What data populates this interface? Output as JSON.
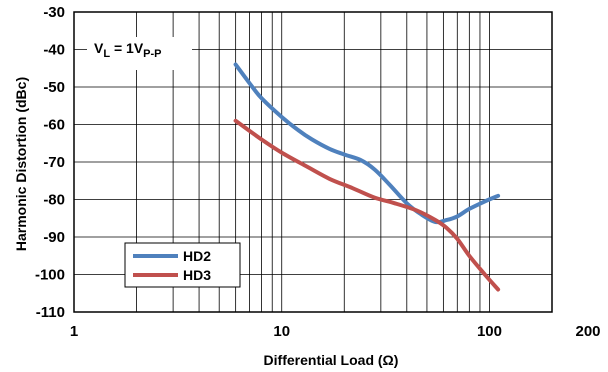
{
  "chart_data": {
    "type": "line",
    "title": "",
    "xlabel": "Differential Load (Ω)",
    "ylabel": "Harmonic Distortion (dBc)",
    "xscale": "log",
    "xlim": [
      1,
      200
    ],
    "ylim": [
      -110,
      -30
    ],
    "x_tick_labels": [
      "1",
      "10",
      "100",
      "200"
    ],
    "y_tick_labels": [
      "-30",
      "-40",
      "-50",
      "-60",
      "-70",
      "-80",
      "-90",
      "-100",
      "-110"
    ],
    "grid": true,
    "legend_position": "bottom-left",
    "annotation": {
      "main": "V",
      "sub1": "L",
      "mid": " = 1V",
      "sub2": "P-P"
    },
    "series": [
      {
        "name": "HD2",
        "color": "#4f81bd",
        "x": [
          6,
          7,
          8,
          10,
          12,
          14,
          17,
          20,
          24,
          28,
          33,
          40,
          47,
          55,
          62,
          70,
          80,
          95,
          110
        ],
        "y": [
          -44,
          -49,
          -53,
          -58,
          -61.5,
          -64,
          -66.5,
          -68,
          -69.5,
          -72,
          -76,
          -81,
          -84,
          -86,
          -85.5,
          -84.5,
          -82.5,
          -80.5,
          -79
        ]
      },
      {
        "name": "HD3",
        "color": "#c0504d",
        "x": [
          6,
          8,
          10,
          13,
          17,
          22,
          28,
          35,
          45,
          55,
          62,
          70,
          80,
          95,
          110
        ],
        "y": [
          -59,
          -64,
          -67.5,
          -71,
          -74.5,
          -77,
          -79.5,
          -81,
          -83,
          -85.5,
          -87.5,
          -90.5,
          -95,
          -100,
          -104
        ]
      }
    ]
  }
}
